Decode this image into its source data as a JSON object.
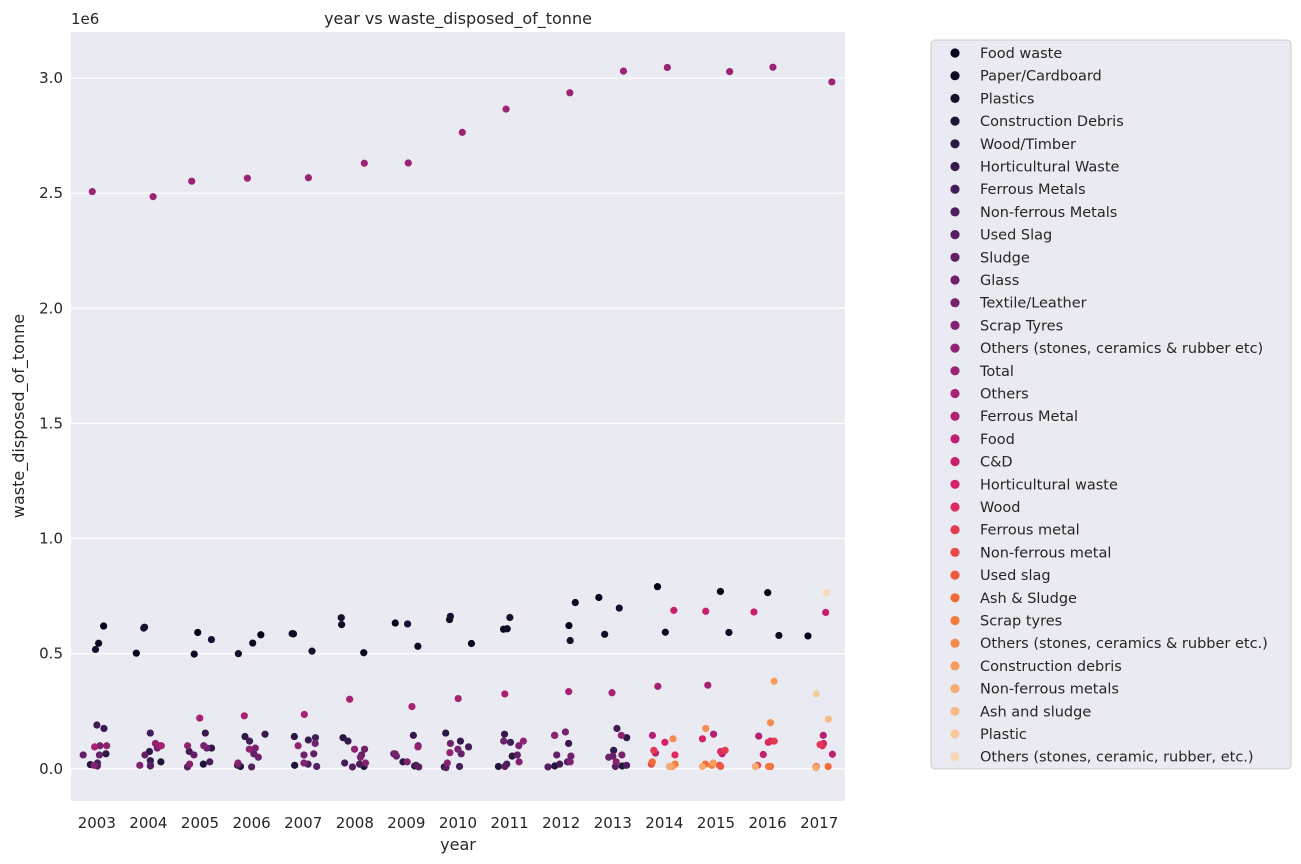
{
  "chart_data": {
    "type": "scatter",
    "title": "year vs waste_disposed_of_tonne",
    "xlabel": "year",
    "ylabel": "waste_disposed_of_tonne",
    "y_offset_label": "1e6",
    "categories": [
      "2003",
      "2004",
      "2005",
      "2006",
      "2007",
      "2008",
      "2009",
      "2010",
      "2011",
      "2012",
      "2013",
      "2014",
      "2015",
      "2016",
      "2017"
    ],
    "y_ticks": [
      0.0,
      0.5,
      1.0,
      1.5,
      2.0,
      2.5,
      3.0
    ],
    "y_tick_labels": [
      "0.0",
      "0.5",
      "1.0",
      "1.5",
      "2.0",
      "2.5",
      "3.0"
    ],
    "ylim": [
      -0.14,
      3.2
    ],
    "grid": true,
    "legend_position": "outside-right",
    "series": [
      {
        "name": "Food waste",
        "color": "#03051a",
        "values": [
          0.62,
          0.502,
          0.592,
          0.582,
          0.586,
          0.504,
          0.633,
          0.544,
          0.606,
          0.622,
          0.744,
          0.791,
          0.77,
          0.765,
          0.577
        ]
      },
      {
        "name": "Paper/Cardboard",
        "color": "#0e0b24",
        "values": [
          0.545,
          0.615,
          0.498,
          0.546,
          0.587,
          0.626,
          0.532,
          0.648,
          0.608,
          0.722,
          0.584,
          0.593,
          0.592,
          0.579,
          null
        ]
      },
      {
        "name": "Plastics",
        "color": "#18102f",
        "values": [
          0.518,
          0.611,
          0.561,
          0.5,
          0.511,
          0.656,
          0.629,
          0.662,
          0.657,
          0.557,
          0.698,
          null,
          null,
          null,
          null
        ]
      },
      {
        "name": "Construction Debris",
        "color": "#21143a",
        "values": [
          0.018,
          0.03,
          0.02,
          0.01,
          0.015,
          0.01,
          0.012,
          0.008,
          0.01,
          0.012,
          0.012,
          null,
          null,
          null,
          null
        ]
      },
      {
        "name": "Wood/Timber",
        "color": "#2b1843",
        "values": [
          0.065,
          0.075,
          0.09,
          0.14,
          0.14,
          0.135,
          0.03,
          0.155,
          0.055,
          0.145,
          0.135,
          null,
          null,
          null,
          null
        ]
      },
      {
        "name": "Horticultural Waste",
        "color": "#361a4d",
        "values": [
          0.175,
          0.035,
          0.155,
          0.15,
          0.125,
          0.12,
          0.145,
          0.12,
          0.15,
          0.11,
          0.08,
          null,
          null,
          null,
          null
        ]
      },
      {
        "name": "Ferrous Metals",
        "color": "#411c55",
        "values": [
          0.19,
          0.155,
          0.075,
          0.12,
          0.135,
          0.025,
          0.065,
          0.095,
          0.115,
          0.02,
          0.175,
          null,
          null,
          null,
          null
        ]
      },
      {
        "name": "Non-ferrous Metals",
        "color": "#4b1e5c",
        "values": [
          0.025,
          0.015,
          0.03,
          0.015,
          0.02,
          0.02,
          0.015,
          0.01,
          0.02,
          0.03,
          0.015,
          null,
          null,
          null,
          null
        ]
      },
      {
        "name": "Used Slag",
        "color": "#561f61",
        "values": [
          0.012,
          0.012,
          0.008,
          0.008,
          0.01,
          0.008,
          0.008,
          0.005,
          0.01,
          0.008,
          0.01,
          null,
          null,
          null,
          null
        ]
      },
      {
        "name": "Sludge",
        "color": "#612066",
        "values": [
          0.06,
          0.06,
          0.06,
          0.065,
          0.065,
          0.06,
          0.055,
          0.065,
          0.06,
          0.06,
          0.055,
          null,
          null,
          null,
          null
        ]
      },
      {
        "name": "Glass",
        "color": "#6c216a",
        "values": [
          0.06,
          0.1,
          0.09,
          0.05,
          0.06,
          0.085,
          0.1,
          0.11,
          0.12,
          0.055,
          0.05,
          null,
          null,
          null,
          null
        ]
      },
      {
        "name": "Textile/Leather",
        "color": "#77226e",
        "values": [
          0.1,
          0.09,
          0.1,
          0.09,
          0.11,
          0.05,
          0.065,
          0.085,
          0.1,
          0.16,
          0.06,
          null,
          null,
          null,
          null
        ]
      },
      {
        "name": "Scrap Tyres",
        "color": "#832370",
        "values": [
          0.015,
          0.015,
          0.02,
          0.025,
          0.025,
          0.025,
          0.03,
          0.025,
          0.03,
          0.03,
          0.03,
          null,
          null,
          null,
          null
        ]
      },
      {
        "name": "Others (stones, ceramics & rubber etc)",
        "color": "#8f2372",
        "values": [
          0.1,
          0.11,
          0.1,
          0.085,
          0.1,
          0.085,
          0.095,
          0.07,
          0.12,
          0.145,
          0.145,
          null,
          null,
          null,
          null
        ]
      },
      {
        "name": "Total",
        "color": "#9b2373",
        "values": [
          2.507,
          2.485,
          2.552,
          2.565,
          2.567,
          2.63,
          2.631,
          2.764,
          2.865,
          2.936,
          3.03,
          3.046,
          3.028,
          3.047,
          2.983
        ]
      },
      {
        "name": "Others",
        "color": "#a72273",
        "values": [
          0.095,
          0.1,
          0.22,
          0.23,
          0.236,
          0.302,
          0.27,
          0.305,
          0.325,
          0.335,
          0.33,
          0.358,
          0.363,
          null,
          null
        ]
      },
      {
        "name": "Ferrous Metal",
        "color": "#b32172",
        "values": [
          null,
          null,
          null,
          null,
          null,
          null,
          null,
          null,
          null,
          null,
          null,
          0.145,
          0.15,
          0.142,
          0.145
        ]
      },
      {
        "name": "Food",
        "color": "#bf1f70",
        "values": [
          null,
          null,
          null,
          null,
          null,
          null,
          null,
          null,
          null,
          null,
          null,
          0.068,
          0.065,
          0.062,
          0.063
        ]
      },
      {
        "name": "C&D",
        "color": "#cb1d6d",
        "values": [
          null,
          null,
          null,
          null,
          null,
          null,
          null,
          null,
          null,
          null,
          null,
          0.688,
          0.684,
          0.681,
          0.679
        ]
      },
      {
        "name": "Horticultural waste",
        "color": "#d62069",
        "values": [
          null,
          null,
          null,
          null,
          null,
          null,
          null,
          null,
          null,
          null,
          null,
          0.115,
          0.13,
          0.12,
          0.11
        ]
      },
      {
        "name": "Wood",
        "color": "#de2b5e",
        "values": [
          null,
          null,
          null,
          null,
          null,
          null,
          null,
          null,
          null,
          null,
          null,
          0.06,
          0.075,
          0.115,
          0.1
        ]
      },
      {
        "name": "Ferrous metal",
        "color": "#e33a52",
        "values": [
          null,
          null,
          null,
          null,
          null,
          null,
          null,
          null,
          null,
          null,
          null,
          0.08,
          0.08,
          0.12,
          0.105
        ]
      },
      {
        "name": "Non-ferrous metal",
        "color": "#e84a47",
        "values": [
          null,
          null,
          null,
          null,
          null,
          null,
          null,
          null,
          null,
          null,
          null,
          0.02,
          0.015,
          0.015,
          0.01
        ]
      },
      {
        "name": "Used slag",
        "color": "#ed5a3d",
        "values": [
          null,
          null,
          null,
          null,
          null,
          null,
          null,
          null,
          null,
          null,
          null,
          0.01,
          0.01,
          0.01,
          0.008
        ]
      },
      {
        "name": "Ash & Sludge",
        "color": "#f16b36",
        "values": [
          null,
          null,
          null,
          null,
          null,
          null,
          null,
          null,
          null,
          null,
          null,
          0.03,
          0.02,
          0.01,
          0.01
        ]
      },
      {
        "name": "Scrap tyres",
        "color": "#f37c3d",
        "values": [
          null,
          null,
          null,
          null,
          null,
          null,
          null,
          null,
          null,
          null,
          null,
          0.02,
          0.015,
          0.01,
          0.008
        ]
      },
      {
        "name": "Others (stones, ceramics & rubber etc.)",
        "color": "#f58c4e",
        "values": [
          null,
          null,
          null,
          null,
          null,
          null,
          null,
          null,
          null,
          null,
          null,
          0.13,
          0.175,
          0.2,
          null
        ]
      },
      {
        "name": "Construction debris",
        "color": "#f69c5f",
        "values": [
          null,
          null,
          null,
          null,
          null,
          null,
          null,
          null,
          null,
          null,
          null,
          0.01,
          0.025,
          0.38,
          null
        ]
      },
      {
        "name": "Non-ferrous metals",
        "color": "#f6ab72",
        "values": [
          null,
          null,
          null,
          null,
          null,
          null,
          null,
          null,
          null,
          null,
          null,
          0.01,
          0.01,
          0.01,
          0.005
        ]
      },
      {
        "name": "Ash and sludge",
        "color": "#f7ba87",
        "values": [
          null,
          null,
          null,
          null,
          null,
          null,
          null,
          null,
          null,
          null,
          null,
          null,
          null,
          null,
          0.215
        ]
      },
      {
        "name": "Plastic",
        "color": "#f8c99c",
        "values": [
          null,
          null,
          null,
          null,
          null,
          null,
          null,
          null,
          null,
          null,
          null,
          null,
          null,
          null,
          0.325
        ]
      },
      {
        "name": "Others (stones, ceramic, rubber, etc.)",
        "color": "#f9d8b5",
        "values": [
          null,
          null,
          null,
          null,
          null,
          null,
          null,
          null,
          null,
          null,
          null,
          null,
          null,
          null,
          0.765
        ]
      }
    ]
  }
}
